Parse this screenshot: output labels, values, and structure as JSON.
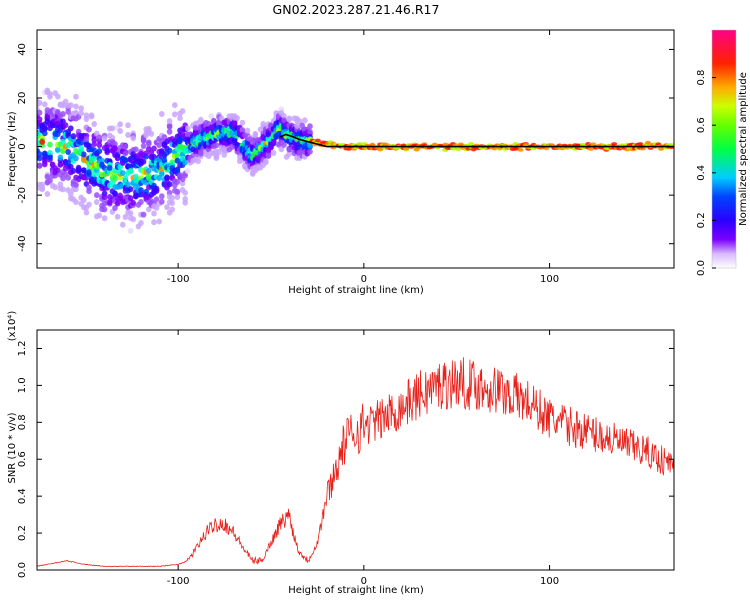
{
  "title": "GN02.2023.287.21.46.R17",
  "chart_data": [
    {
      "type": "heatmap",
      "title": "GN02.2023.287.21.46.R17",
      "xlabel": "Height of straight line (km)",
      "ylabel": "Frequency (Hz)",
      "xlim": [
        -176,
        167
      ],
      "ylim": [
        -50,
        48
      ],
      "x_ticks": [
        -100,
        0,
        100
      ],
      "x_tick_labels": [
        "-100",
        "0",
        "100"
      ],
      "y_ticks": [
        -40,
        -20,
        0,
        20,
        40
      ],
      "y_tick_labels": [
        "-40",
        "-20",
        "0",
        "20",
        "40"
      ],
      "grid": false,
      "colorbar": {
        "label": "Normalized spectral amplitude",
        "range": [
          0,
          1
        ],
        "ticks": [
          0.0,
          0.2,
          0.4,
          0.6,
          0.8
        ],
        "tick_labels": [
          "0.0",
          "0.2",
          "0.4",
          "0.6",
          "0.8"
        ],
        "colors": [
          "#ffffff",
          "#7b00ff",
          "#0000ff",
          "#00ccff",
          "#00ff44",
          "#ccff00",
          "#ffaa00",
          "#ff0000",
          "#ff0088"
        ]
      },
      "line_series": {
        "name": "",
        "color": "#000000",
        "x": [
          -45,
          -42,
          -38,
          -35,
          -30,
          -25,
          -20,
          -15,
          -10,
          -5,
          0,
          10,
          20,
          40,
          60,
          80,
          100,
          120,
          140,
          167
        ],
        "y": [
          4,
          5,
          4,
          3,
          2,
          1,
          0,
          0,
          0,
          0,
          0,
          0,
          0,
          0,
          0,
          0,
          0,
          0,
          0,
          0
        ]
      },
      "ridge_series": {
        "x": [
          -170,
          -160,
          -150,
          -140,
          -130,
          -120,
          -110,
          -100,
          -90,
          -80,
          -70,
          -60,
          -50,
          -45,
          -42,
          -35,
          -30,
          -20,
          -10,
          0,
          20,
          50,
          80,
          110,
          140,
          167
        ],
        "y": [
          2,
          0,
          -5,
          -11,
          -12,
          -12,
          -10,
          -3,
          2,
          5,
          6,
          -4,
          3,
          8,
          5,
          3,
          2,
          1,
          0,
          0,
          0,
          0,
          0,
          0,
          0,
          0
        ]
      }
    },
    {
      "type": "line",
      "xlabel": "Height of straight line (km)",
      "ylabel": "SNR (10 * v/v)",
      "y_multiplier_label": "(x10⁴)",
      "xlim": [
        -176,
        167
      ],
      "ylim": [
        0,
        1.3
      ],
      "x_ticks": [
        -100,
        0,
        100
      ],
      "x_tick_labels": [
        "-100",
        "0",
        "100"
      ],
      "y_ticks": [
        0.0,
        0.2,
        0.4,
        0.6,
        0.8,
        1.0,
        1.2
      ],
      "y_tick_labels": [
        "0.0",
        "0.2",
        "0.4",
        "0.6",
        "0.8",
        "1.0",
        "1.2"
      ],
      "grid": false,
      "series": [
        {
          "name": "",
          "color": "#e8201a",
          "x": [
            -176,
            -160,
            -150,
            -140,
            -130,
            -120,
            -110,
            -100,
            -95,
            -90,
            -85,
            -80,
            -75,
            -70,
            -65,
            -60,
            -55,
            -50,
            -45,
            -40,
            -38,
            -35,
            -30,
            -25,
            -22,
            -20,
            -15,
            -10,
            -5,
            0,
            10,
            20,
            30,
            40,
            50,
            60,
            70,
            80,
            90,
            100,
            110,
            120,
            130,
            140,
            150,
            160,
            167
          ],
          "y": [
            0.02,
            0.05,
            0.03,
            0.02,
            0.02,
            0.02,
            0.02,
            0.03,
            0.05,
            0.12,
            0.2,
            0.25,
            0.25,
            0.2,
            0.12,
            0.05,
            0.05,
            0.15,
            0.25,
            0.3,
            0.2,
            0.1,
            0.05,
            0.15,
            0.3,
            0.4,
            0.55,
            0.7,
            0.75,
            0.78,
            0.82,
            0.88,
            0.95,
            1.0,
            1.02,
            1.0,
            0.98,
            0.95,
            0.9,
            0.82,
            0.78,
            0.75,
            0.72,
            0.68,
            0.65,
            0.6,
            0.57
          ]
        }
      ]
    }
  ]
}
